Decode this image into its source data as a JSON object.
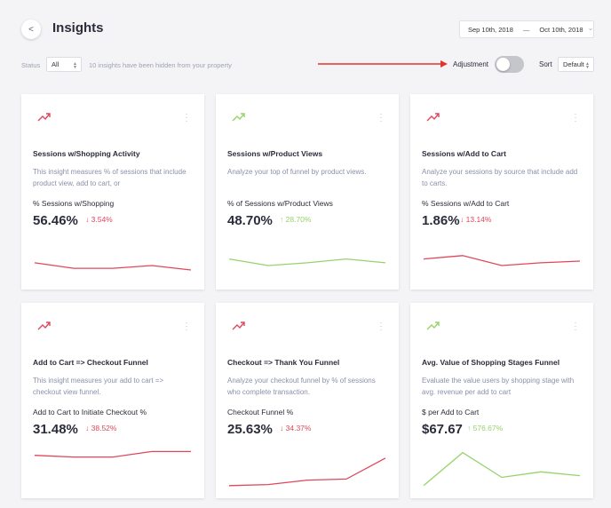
{
  "header": {
    "title": "Insights",
    "back_glyph": "<",
    "date_start": "Sep 10th, 2018",
    "date_sep": "—",
    "date_end": "Oct 10th, 2018",
    "date_chevron": "⌄"
  },
  "filters": {
    "status_label": "Status",
    "status_value": "All",
    "hidden_note": "10 insights have been hidden from your property",
    "adjustment_label": "Adjustment",
    "adjustment_on": false,
    "sort_label": "Sort",
    "sort_value": "Default"
  },
  "colors": {
    "down": "#e0475c",
    "up": "#96d36b",
    "arrow": "#e5322d"
  },
  "cards": [
    {
      "icon": "trend-up-icon",
      "icon_color": "#e0475c",
      "title": "Sessions w/Shopping Activity",
      "description": "This insight measures % of sessions that include product view, add to cart, or",
      "metric_label": "% Sessions w/Shopping",
      "metric_value": "56.46%",
      "delta_arrow": "↓",
      "delta": "3.54%",
      "trend": "down",
      "spark": [
        0.55,
        0.45,
        0.45,
        0.5,
        0.42
      ]
    },
    {
      "icon": "trend-up-icon",
      "icon_color": "#96d36b",
      "title": "Sessions w/Product Views",
      "description": "Analyze your top of funnel by product views.",
      "metric_label": "% of Sessions w/Product Views",
      "metric_value": "48.70%",
      "delta_arrow": "↑",
      "delta": "28.70%",
      "trend": "up",
      "spark": [
        0.62,
        0.5,
        0.55,
        0.62,
        0.55
      ]
    },
    {
      "icon": "trend-up-icon",
      "icon_color": "#e0475c",
      "title": "Sessions w/Add to Cart",
      "description": "Analyze your sessions by source that include add to carts.",
      "metric_label": "% Sessions w/Add to Cart",
      "metric_value": "1.86%",
      "delta_arrow": "↓",
      "delta": "13.14%",
      "trend": "down",
      "spark": [
        0.62,
        0.68,
        0.5,
        0.55,
        0.58
      ]
    },
    {
      "icon": "trend-up-icon",
      "icon_color": "#e0475c",
      "title": "Add to Cart => Checkout Funnel",
      "description": "This insight measures your add to cart => checkout view funnel.",
      "metric_label": "Add to Cart to Initiate Checkout %",
      "metric_value": "31.48%",
      "delta_arrow": "↓",
      "delta": "38.52%",
      "trend": "down",
      "spark": [
        0.65,
        0.62,
        0.62,
        0.72,
        0.72
      ]
    },
    {
      "icon": "trend-up-icon",
      "icon_color": "#e0475c",
      "title": "Checkout => Thank You Funnel",
      "description": "Analyze your checkout funnel by % of sessions who complete transaction.",
      "metric_label": "Checkout Funnel %",
      "metric_value": "25.63%",
      "delta_arrow": "↓",
      "delta": "34.37%",
      "trend": "down",
      "spark": [
        0.1,
        0.12,
        0.2,
        0.22,
        0.6
      ]
    },
    {
      "icon": "trend-up-icon",
      "icon_color": "#96d36b",
      "title": "Avg. Value of Shopping Stages Funnel",
      "description": "Evaluate the value users by shopping stage with avg. revenue per add to cart",
      "metric_label": "$ per Add to Cart",
      "metric_value": "$67.67",
      "delta_arrow": "↑",
      "delta": "576.67%",
      "trend": "up",
      "spark": [
        0.1,
        0.7,
        0.25,
        0.35,
        0.28
      ]
    }
  ]
}
